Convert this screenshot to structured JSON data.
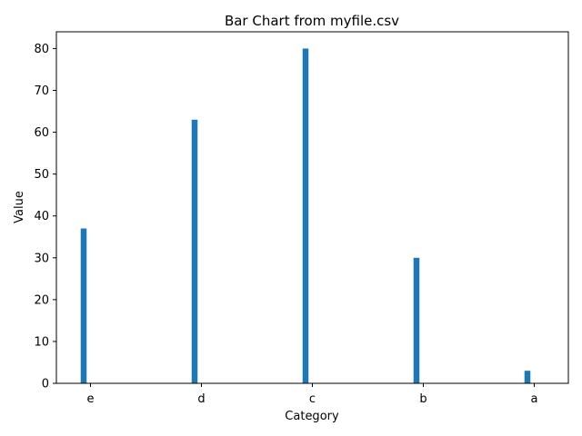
{
  "chart_data": {
    "type": "bar",
    "title": "Bar Chart from myfile.csv",
    "xlabel": "Category",
    "ylabel": "Value",
    "categories": [
      "e",
      "d",
      "c",
      "b",
      "a"
    ],
    "values": [
      37,
      63,
      80,
      30,
      3
    ],
    "ylim": [
      0,
      84
    ],
    "yticks": [
      0,
      10,
      20,
      30,
      40,
      50,
      60,
      70,
      80
    ],
    "bar_color": "#1f77b4",
    "grid": false
  }
}
